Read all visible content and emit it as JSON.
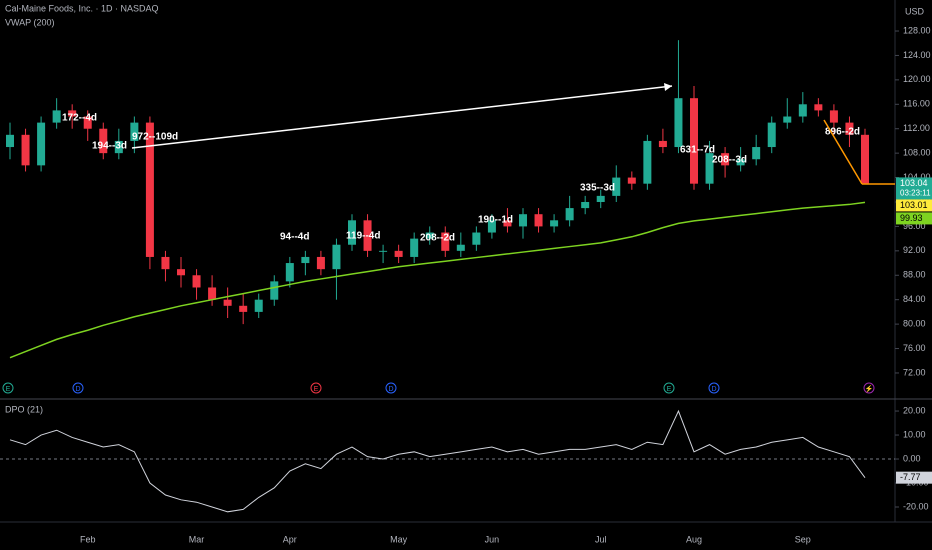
{
  "chart_data": [
    {
      "type": "candlestick",
      "title": "Cal-Maine Foods, Inc. · 1D · NASDAQ",
      "currency": "USD",
      "categories": [
        null,
        null,
        null,
        null,
        null,
        "Feb",
        null,
        null,
        null,
        null,
        null,
        null,
        "Mar",
        null,
        null,
        null,
        null,
        null,
        "Apr",
        null,
        null,
        null,
        null,
        null,
        null,
        "May",
        null,
        null,
        null,
        null,
        null,
        "Jun",
        null,
        null,
        null,
        null,
        null,
        null,
        "Jul",
        null,
        null,
        null,
        null,
        null,
        "Aug",
        null,
        null,
        null,
        null,
        null,
        null,
        "Sep",
        null,
        null,
        null,
        null
      ],
      "open": [
        109,
        111,
        106,
        113,
        115,
        114,
        112,
        108,
        110,
        113,
        91,
        89,
        88,
        86,
        84,
        83,
        82,
        84,
        87,
        90,
        91,
        89,
        93,
        97,
        92,
        92,
        91,
        94,
        95,
        92,
        93,
        95,
        97,
        96,
        98,
        96,
        97,
        99,
        100,
        101,
        104,
        103,
        110,
        109,
        117,
        103,
        108,
        106,
        107,
        109,
        113,
        114,
        116,
        115,
        113,
        111
      ],
      "high": [
        113,
        112,
        114,
        117,
        116,
        115,
        113,
        112,
        114,
        114,
        92,
        91,
        89,
        88,
        86,
        85,
        85,
        88,
        91,
        92,
        92,
        94,
        98,
        98,
        93,
        93,
        95,
        96,
        96,
        95,
        96,
        98,
        99,
        99,
        99,
        98,
        101,
        101,
        102,
        106,
        105,
        111,
        112,
        126.5,
        119,
        110,
        109,
        109,
        111,
        114,
        117,
        118,
        117,
        116,
        114,
        112
      ],
      "low": [
        107,
        105,
        105,
        112,
        112,
        110,
        107,
        107,
        108,
        89,
        87,
        86,
        84,
        83,
        81,
        80,
        81,
        83,
        86,
        88,
        88,
        84,
        92,
        91,
        90,
        90,
        90,
        93,
        91,
        91,
        92,
        94,
        95,
        94,
        95,
        95,
        96,
        98,
        99,
        100,
        102,
        102,
        108,
        108,
        102,
        102,
        104,
        105,
        106,
        108,
        112,
        113,
        114,
        111,
        109,
        103
      ],
      "close": [
        111,
        106,
        113,
        115,
        114,
        112,
        108,
        110,
        113,
        91,
        89,
        88,
        86,
        84,
        83,
        82,
        84,
        87,
        90,
        91,
        89,
        93,
        97,
        92,
        92,
        91,
        94,
        95,
        92,
        93,
        95,
        97,
        96,
        98,
        96,
        97,
        99,
        100,
        101,
        104,
        103,
        110,
        109,
        117,
        103,
        108,
        106,
        107,
        109,
        113,
        114,
        116,
        115,
        113,
        111,
        103.04
      ],
      "up_color": "#22ab94",
      "down_color": "#f23645",
      "series": [
        {
          "name": "VWAP (200)",
          "color": "#7ed321",
          "values": [
            74.5,
            75.5,
            76.5,
            77.5,
            78.3,
            79,
            79.8,
            80.5,
            81.2,
            81.8,
            82.4,
            83,
            83.5,
            84,
            84.5,
            85,
            85.5,
            86,
            86.5,
            87,
            87.4,
            87.8,
            88.2,
            88.6,
            89,
            89.4,
            89.7,
            90,
            90.3,
            90.6,
            90.9,
            91.2,
            91.5,
            91.8,
            92.1,
            92.4,
            92.7,
            93,
            93.3,
            93.8,
            94.3,
            95,
            95.8,
            96.5,
            96.9,
            97.2,
            97.5,
            97.8,
            98.1,
            98.4,
            98.7,
            99,
            99.2,
            99.4,
            99.6,
            99.93
          ]
        }
      ],
      "ylim": [
        67.9,
        133.08
      ],
      "yticks": [
        {
          "value": 72,
          "label": "72.00"
        },
        {
          "value": 76,
          "label": "76.00"
        },
        {
          "value": 80,
          "label": "80.00"
        },
        {
          "value": 84,
          "label": "84.00"
        },
        {
          "value": 88,
          "label": "88.00"
        },
        {
          "value": 92,
          "label": "92.00"
        },
        {
          "value": 96,
          "label": "96.00"
        },
        {
          "value": 100,
          "label": "100.00"
        },
        {
          "value": 104,
          "label": "104.00"
        },
        {
          "value": 108,
          "label": "108.00"
        },
        {
          "value": 112,
          "label": "112.00"
        },
        {
          "value": 116,
          "label": "116.00"
        },
        {
          "value": 120,
          "label": "120.00"
        },
        {
          "value": 124,
          "label": "124.00"
        },
        {
          "value": 128,
          "label": "128.00"
        }
      ],
      "price_labels": [
        {
          "value": 103.01,
          "color": "#ffeb3b"
        }
      ],
      "countdown": "03:23:11",
      "annotations": [
        "172--4d",
        "194--3d",
        "972--109d",
        "94--4d",
        "119--4d",
        "208--2d",
        "190--1d",
        "335--3d",
        "631--7d",
        "208--3d",
        "896--2d"
      ],
      "events": [
        "E",
        "D",
        "E",
        "D",
        "E",
        "D",
        "⚡"
      ]
    },
    {
      "type": "line",
      "series": [
        {
          "name": "DPO (21)",
          "color": "#d1d4dc",
          "values": [
            8,
            6,
            10,
            12,
            9,
            7,
            5,
            6,
            3,
            -10,
            -15,
            -17,
            -18,
            -20,
            -22,
            -21,
            -16,
            -12,
            -5,
            -2,
            -4,
            2,
            5,
            1,
            0,
            2,
            3,
            1,
            2,
            3,
            4,
            5,
            3,
            4,
            2,
            3,
            4,
            4,
            5,
            6,
            4,
            7,
            6,
            20,
            3,
            6,
            2,
            4,
            5,
            7,
            8,
            9,
            5,
            3,
            1,
            -7.77
          ]
        }
      ],
      "ylim": [
        -26.25,
        24.6
      ],
      "yticks": [
        {
          "value": -20,
          "label": "-20.00"
        },
        {
          "value": -10,
          "label": "-10.00"
        },
        {
          "value": 0,
          "label": "0.00"
        },
        {
          "value": 10,
          "label": "10.00"
        },
        {
          "value": 20,
          "label": "20.00"
        }
      ]
    }
  ]
}
